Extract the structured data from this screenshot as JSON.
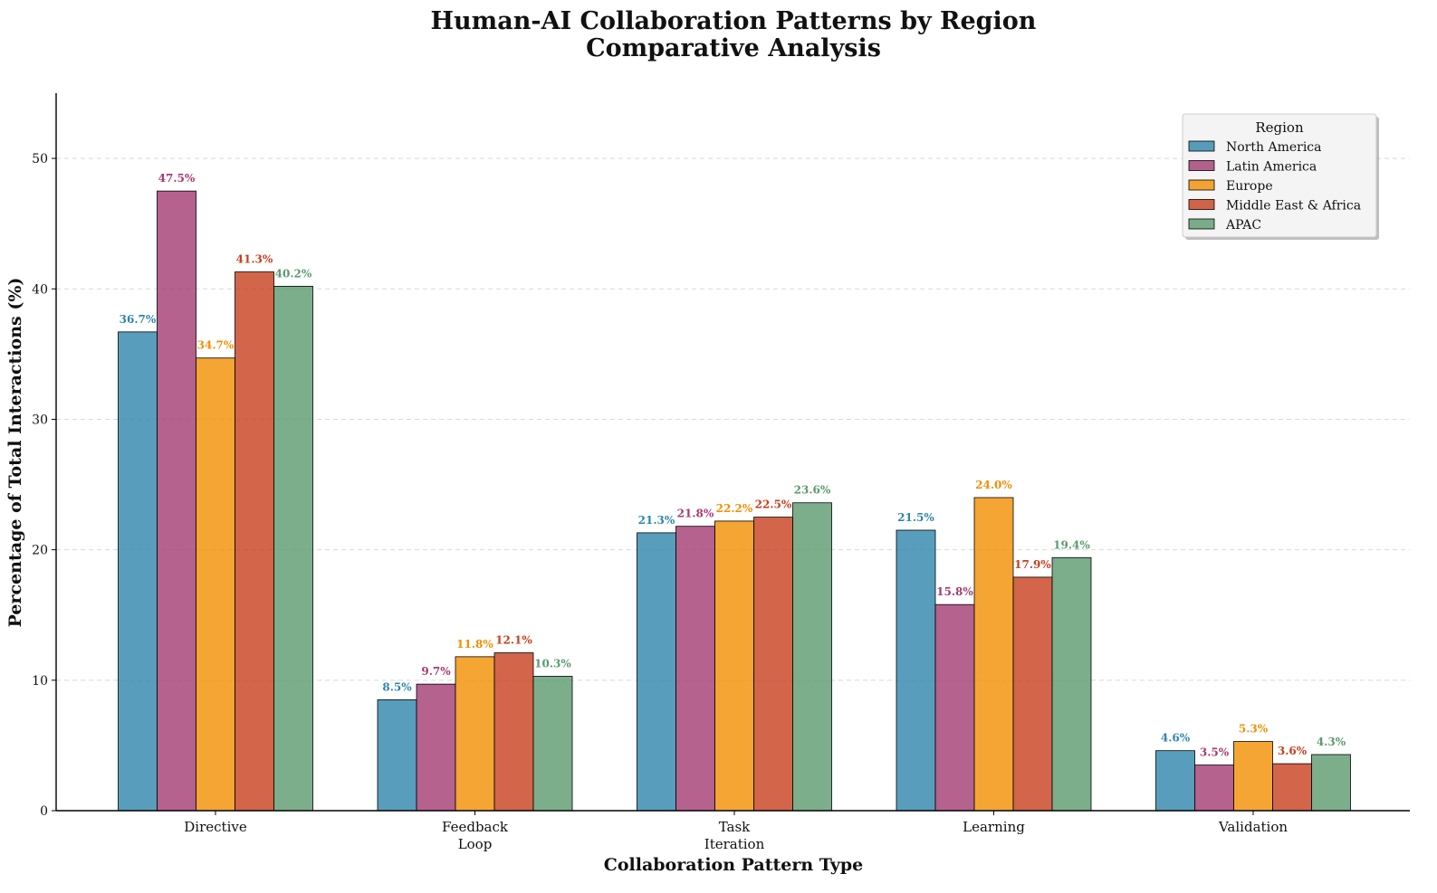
{
  "chart_data": {
    "type": "bar",
    "title": [
      "Human-AI Collaboration Patterns by Region",
      "Comparative Analysis"
    ],
    "xlabel": "Collaboration Pattern Type",
    "ylabel": "Percentage of Total Interactions (%)",
    "categories": [
      [
        "Directive"
      ],
      [
        "Feedback",
        "Loop"
      ],
      [
        "Task",
        "Iteration"
      ],
      [
        "Learning"
      ],
      [
        "Validation"
      ]
    ],
    "ylim": [
      0,
      55
    ],
    "yticks": [
      0,
      10,
      20,
      30,
      40,
      50
    ],
    "grid": "y-dashed",
    "legend": {
      "title": "Region",
      "placement": "top-right"
    },
    "value_label_suffix": "%",
    "series": [
      {
        "name": "North America",
        "color": "#2E86AB",
        "values": [
          36.7,
          8.5,
          21.3,
          21.5,
          4.6
        ]
      },
      {
        "name": "Latin America",
        "color": "#A23B72",
        "values": [
          47.5,
          9.7,
          21.8,
          15.8,
          3.5
        ]
      },
      {
        "name": "Europe",
        "color": "#F18F01",
        "values": [
          34.7,
          11.8,
          22.2,
          24.0,
          5.3
        ]
      },
      {
        "name": "Middle East & Africa",
        "color": "#C73E1D",
        "values": [
          41.3,
          12.1,
          22.5,
          17.9,
          3.6
        ]
      },
      {
        "name": "APAC",
        "color": "#5B9A6E",
        "values": [
          40.2,
          10.3,
          23.6,
          19.4,
          4.3
        ]
      }
    ]
  }
}
